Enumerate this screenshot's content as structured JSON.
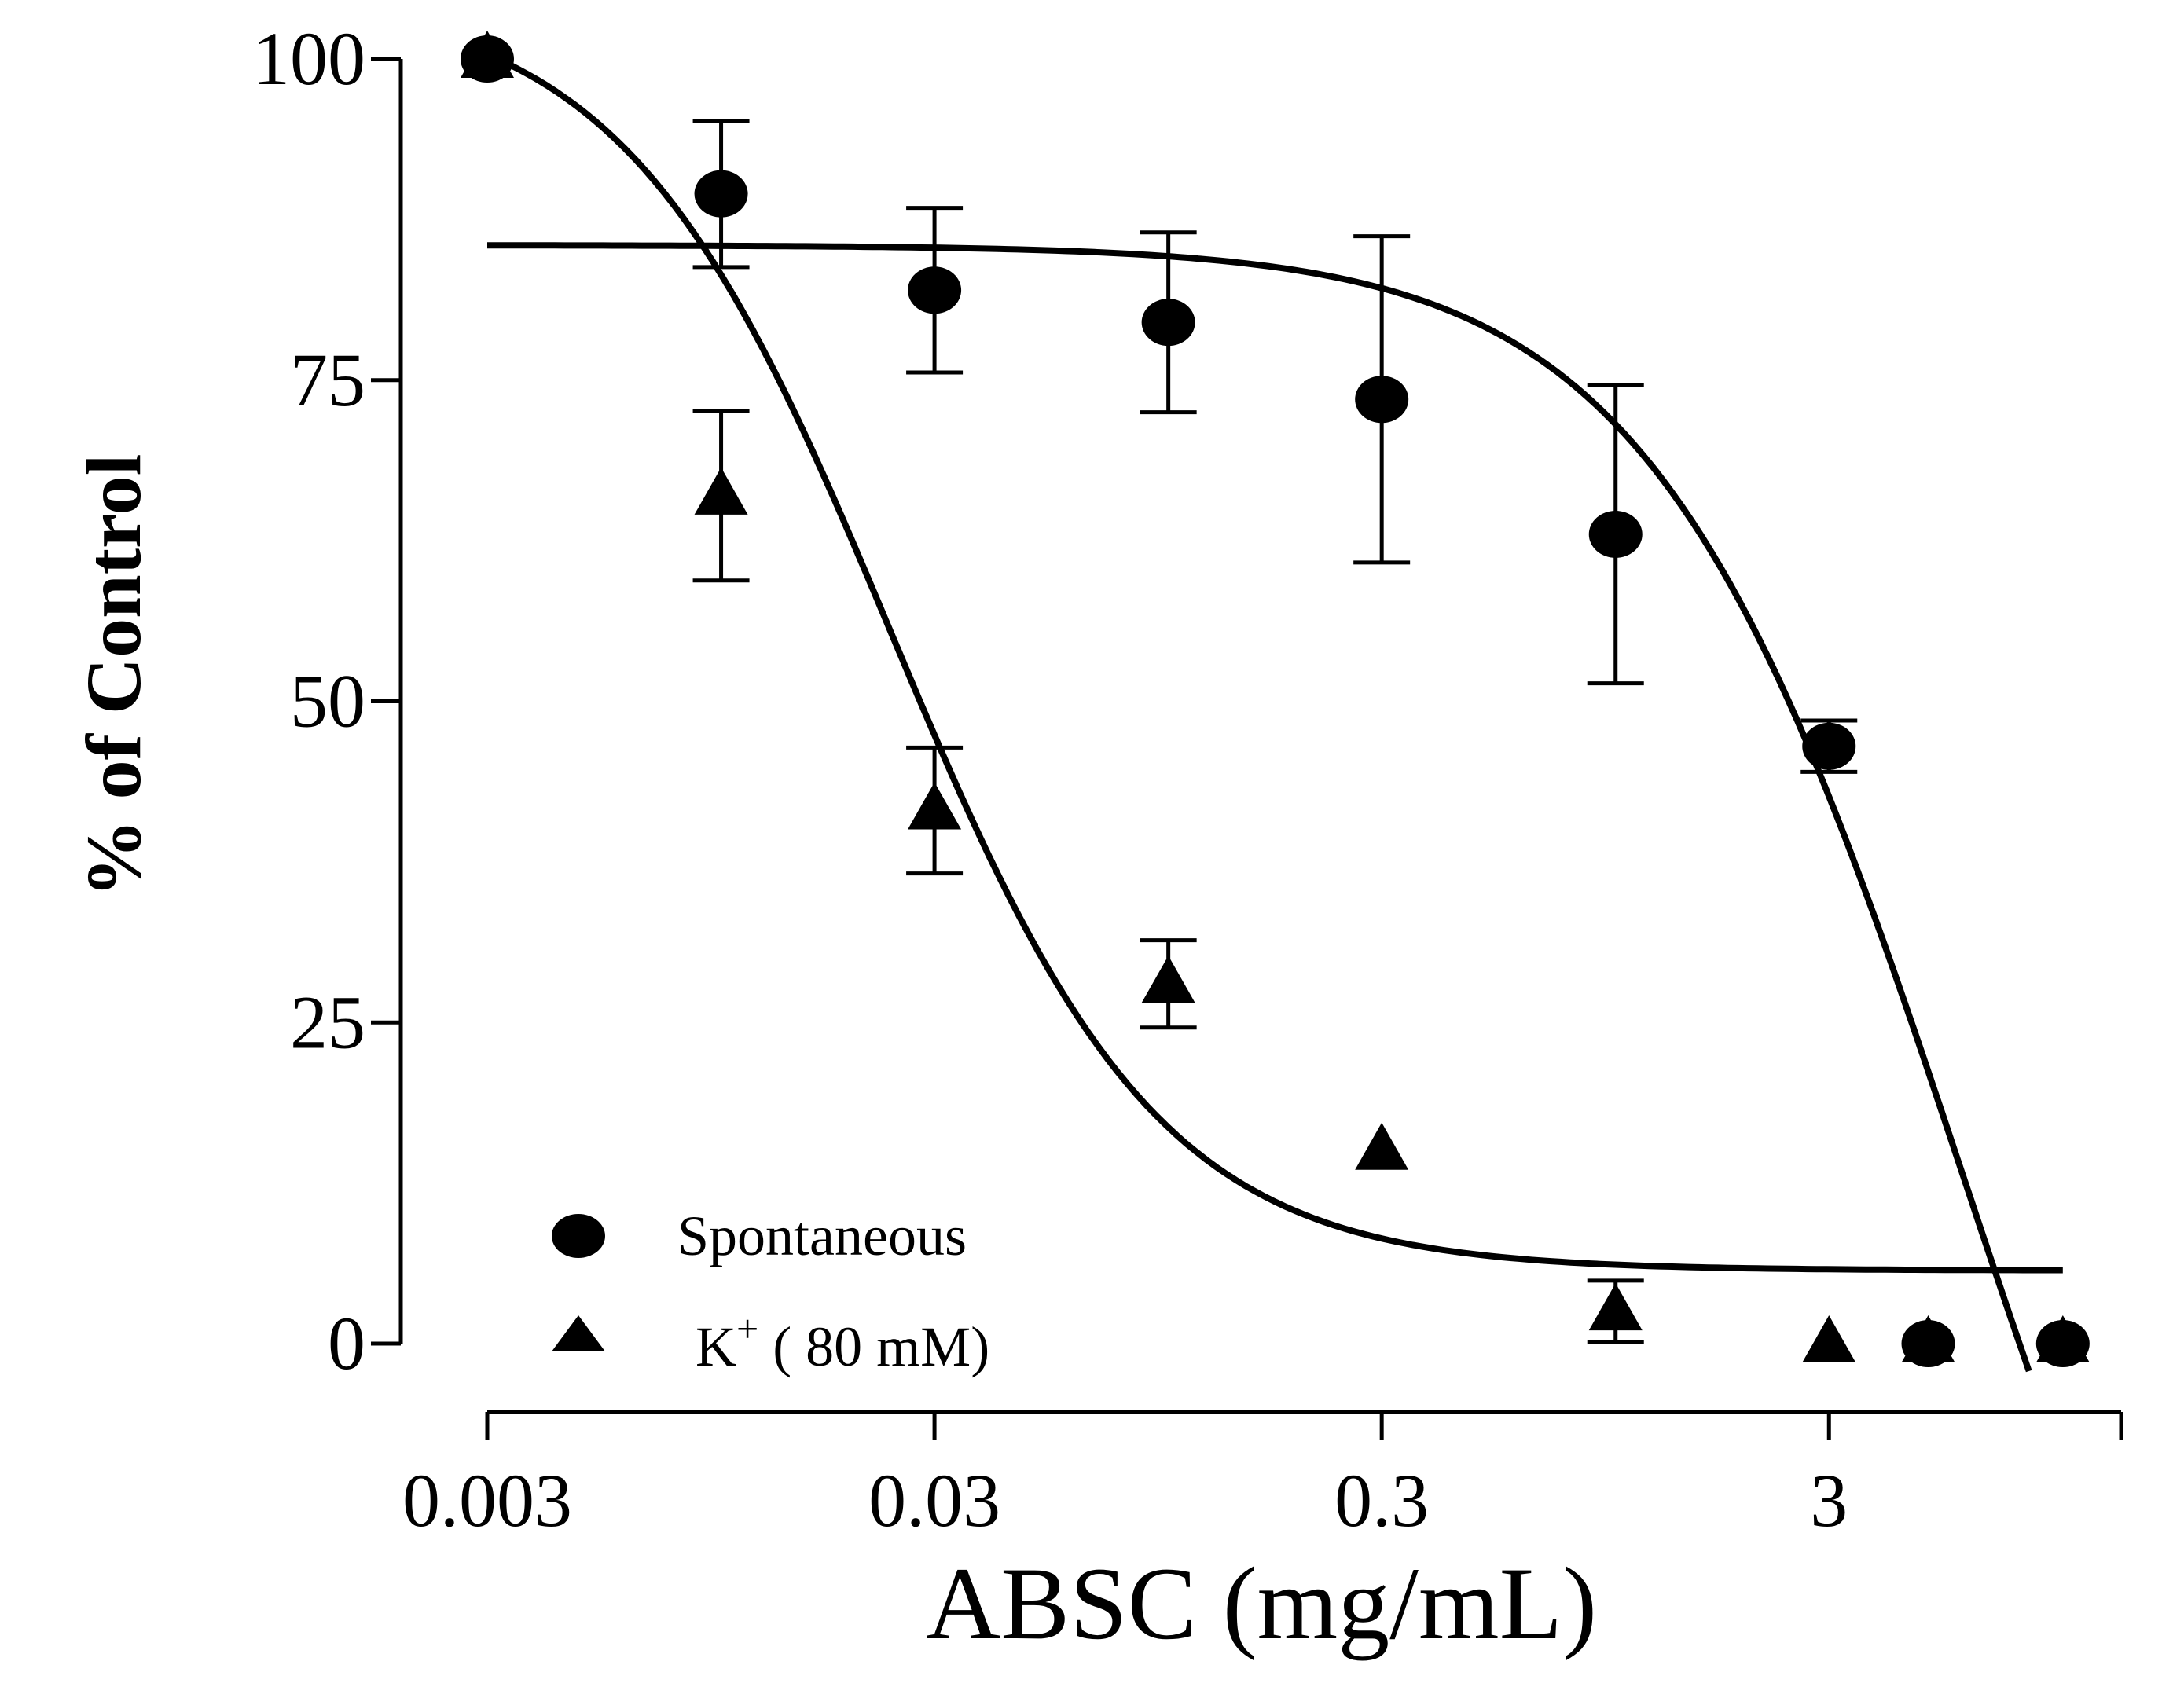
{
  "chart_data": {
    "type": "scatter",
    "title": "",
    "xlabel": "ABSC (mg/mL)",
    "ylabel": "% of Control",
    "xscale": "log",
    "xlim": [
      0.003,
      13.5
    ],
    "ylim": [
      0,
      100
    ],
    "x_ticks": [
      {
        "value": 0.003,
        "label": "0.003"
      },
      {
        "value": 0.03,
        "label": "0.03"
      },
      {
        "value": 0.3,
        "label": "0.3"
      },
      {
        "value": 3,
        "label": "3"
      },
      {
        "value": 13.5,
        "label": ""
      }
    ],
    "y_ticks": [
      {
        "value": 0,
        "label": "0"
      },
      {
        "value": 25,
        "label": "25"
      },
      {
        "value": 50,
        "label": "50"
      },
      {
        "value": 75,
        "label": "75"
      },
      {
        "value": 100,
        "label": "100"
      }
    ],
    "series": [
      {
        "name": "Spontaneous",
        "marker": "circle",
        "points": [
          {
            "x": 0.003,
            "y": 100,
            "err": 0
          },
          {
            "x": 0.01,
            "y": 89.5,
            "err": 5.7
          },
          {
            "x": 0.03,
            "y": 82,
            "err": 6.4
          },
          {
            "x": 0.1,
            "y": 79.5,
            "err": 7
          },
          {
            "x": 0.3,
            "y": 73.5,
            "err": 12.7
          },
          {
            "x": 1,
            "y": 63,
            "err": 11.6
          },
          {
            "x": 3,
            "y": 46.5,
            "err": 2
          },
          {
            "x": 5,
            "y": 0,
            "err": 0
          },
          {
            "x": 10,
            "y": 0,
            "err": 0
          }
        ],
        "fit": {
          "model": "sigmoid",
          "top": 85.5,
          "bottom": -60,
          "log_ec50": 0.78,
          "hill": 1.25,
          "x_range": [
            0.003,
            8.4
          ]
        }
      },
      {
        "name": "K⁺ ( 80 mM)",
        "marker": "triangle",
        "points": [
          {
            "x": 0.003,
            "y": 100,
            "err": 0
          },
          {
            "x": 0.01,
            "y": 66,
            "err": 6.6
          },
          {
            "x": 0.03,
            "y": 41.5,
            "err": 4.9
          },
          {
            "x": 0.1,
            "y": 28,
            "err": 3.4
          },
          {
            "x": 0.3,
            "y": 15,
            "err": 0
          },
          {
            "x": 1,
            "y": 2.5,
            "err": 2.4
          },
          {
            "x": 3,
            "y": 0,
            "err": 0
          },
          {
            "x": 5,
            "y": 0,
            "err": 0
          },
          {
            "x": 10,
            "y": 0,
            "err": 0
          }
        ],
        "fit": {
          "model": "sigmoid",
          "top": 105,
          "bottom": 5.7,
          "log_ec50": -1.62,
          "hill": 1.45,
          "x_range": [
            0.003,
            10
          ]
        }
      }
    ],
    "legend": {
      "position": "bottom-left",
      "entries": [
        {
          "label": "Spontaneous",
          "marker": "circle"
        },
        {
          "label": "K",
          "superscript": "+",
          "suffix": " ( 80 mM)",
          "marker": "triangle"
        }
      ]
    }
  }
}
